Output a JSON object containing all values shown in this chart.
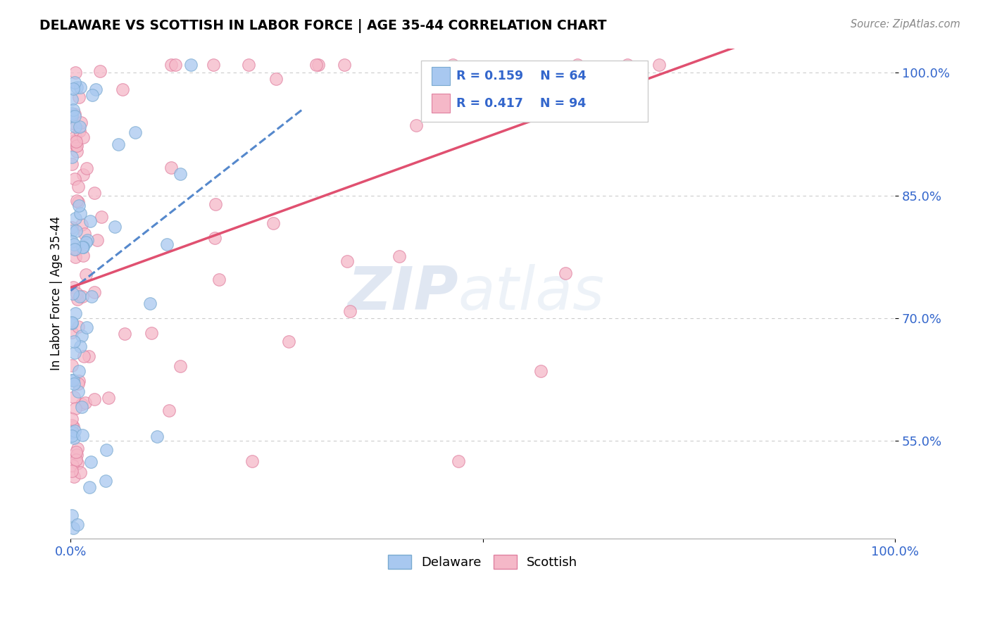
{
  "title": "DELAWARE VS SCOTTISH IN LABOR FORCE | AGE 35-44 CORRELATION CHART",
  "source_text": "Source: ZipAtlas.com",
  "ylabel": "In Labor Force | Age 35-44",
  "xlim": [
    0.0,
    1.0
  ],
  "ylim": [
    0.43,
    1.03
  ],
  "yticks": [
    0.55,
    0.7,
    0.85,
    1.0
  ],
  "ytick_labels": [
    "55.0%",
    "70.0%",
    "85.0%",
    "100.0%"
  ],
  "delaware_color": "#a8c8f0",
  "delaware_edge": "#7aaad0",
  "scottish_color": "#f5b8c8",
  "scottish_edge": "#e080a0",
  "delaware_trend_color": "#5588cc",
  "scottish_trend_color": "#e05070",
  "delaware_r": 0.159,
  "delaware_n": 64,
  "scottish_r": 0.417,
  "scottish_n": 94,
  "legend_r_color": "#3366cc",
  "watermark_zip": "ZIP",
  "watermark_atlas": "atlas",
  "tick_color": "#3366cc",
  "grid_color": "#cccccc",
  "delaware_seed": 12,
  "scottish_seed": 7
}
